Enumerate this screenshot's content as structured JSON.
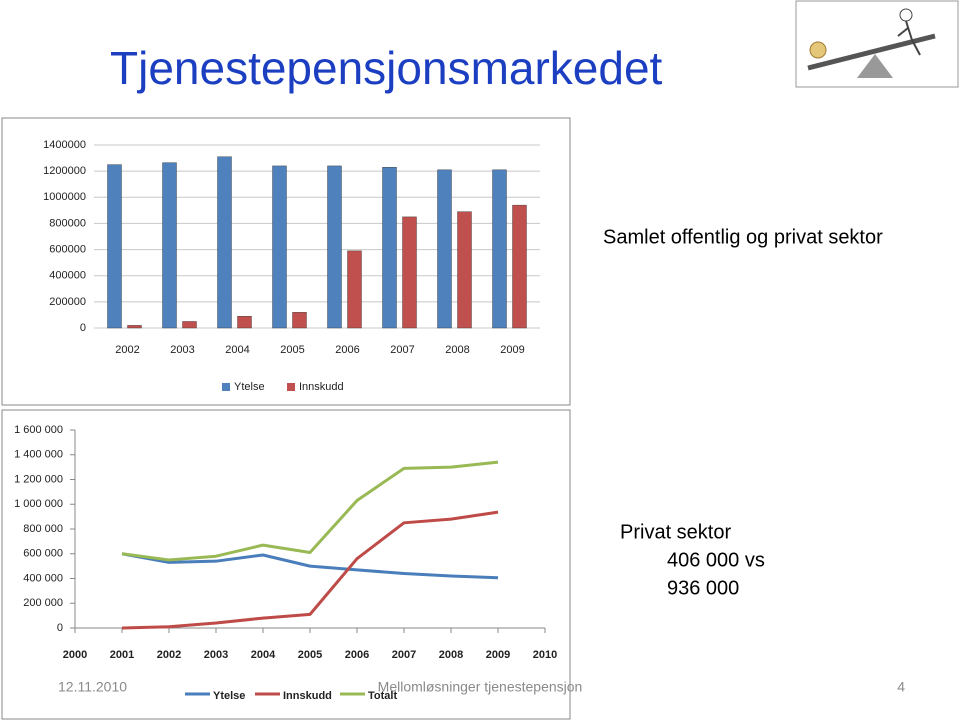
{
  "title": "Tjenestepensjonsmarkedet",
  "notes": [
    "Samlet offentlig og privat sektor",
    "Privat sektor",
    "406 000 vs",
    "936 000"
  ],
  "footer": {
    "date": "12.11.2010",
    "text": "Mellomløsninger tjenestepensjon",
    "page": "4"
  },
  "chart_data": [
    {
      "type": "bar",
      "categories": [
        "2002",
        "2003",
        "2004",
        "2005",
        "2006",
        "2007",
        "2008",
        "2009"
      ],
      "series": [
        {
          "name": "Ytelse",
          "color": "#4f81bd",
          "values": [
            1250000,
            1265000,
            1310000,
            1240000,
            1240000,
            1230000,
            1210000,
            1210000
          ]
        },
        {
          "name": "Innskudd",
          "color": "#c0504d",
          "values": [
            20000,
            50000,
            90000,
            120000,
            590000,
            850000,
            890000,
            940000
          ]
        }
      ],
      "ylim": [
        0,
        1400000
      ],
      "yticks": [
        0,
        200000,
        400000,
        600000,
        800000,
        1000000,
        1200000,
        1400000
      ],
      "grid": true,
      "legend": "bottom"
    },
    {
      "type": "line",
      "x": [
        2001,
        2002,
        2003,
        2004,
        2005,
        2006,
        2007,
        2008,
        2009
      ],
      "series": [
        {
          "name": "Ytelse",
          "color": "#4a7ebb",
          "values": [
            600000,
            530000,
            540000,
            590000,
            500000,
            470000,
            440000,
            420000,
            406000
          ]
        },
        {
          "name": "Innskudd",
          "color": "#be4b48",
          "values": [
            0,
            10000,
            40000,
            80000,
            110000,
            560000,
            850000,
            880000,
            936000
          ]
        },
        {
          "name": "Totalt",
          "color": "#98b954",
          "values": [
            600000,
            550000,
            580000,
            670000,
            610000,
            1030000,
            1290000,
            1300000,
            1340000
          ]
        }
      ],
      "xlim": [
        2000,
        2010
      ],
      "xticks": [
        2000,
        2001,
        2002,
        2003,
        2004,
        2005,
        2006,
        2007,
        2008,
        2009,
        2010
      ],
      "ylim": [
        0,
        1600000
      ],
      "yticks": [
        0,
        {
          "value": 200000,
          "label": "200 000"
        },
        {
          "value": 400000,
          "label": "400 000"
        },
        {
          "value": 600000,
          "label": "600 000"
        },
        {
          "value": 800000,
          "label": "800 000"
        },
        {
          "value": 1000000,
          "label": "1 000 000"
        },
        {
          "value": 1200000,
          "label": "1 200 000"
        },
        {
          "value": 1400000,
          "label": "1 400 000"
        },
        {
          "value": 1600000,
          "label": "1 600 000"
        }
      ],
      "grid": false,
      "legend": "bottom"
    }
  ]
}
